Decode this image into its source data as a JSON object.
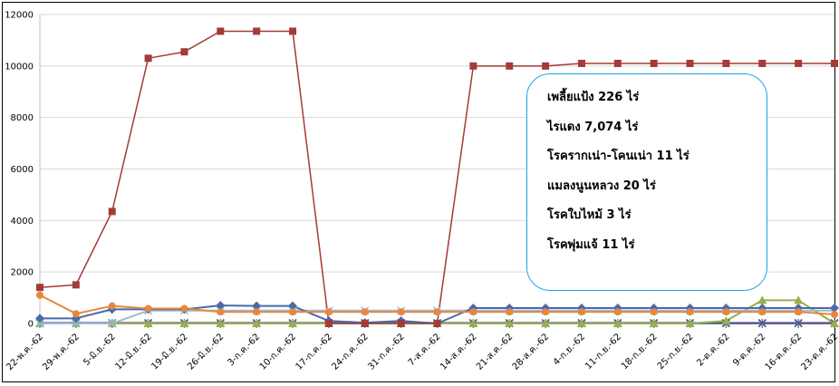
{
  "chart_data": {
    "type": "line",
    "title": "",
    "xlabel": "",
    "ylabel": "",
    "ylim": [
      0,
      12000
    ],
    "yticks": [
      0,
      2000,
      4000,
      6000,
      8000,
      10000,
      12000
    ],
    "grid": "horizontal",
    "legend": "none",
    "categories": [
      "22-พ.ค.-62",
      "29-พ.ค.-62",
      "5-มิ.ย.-62",
      "12-มิ.ย.-62",
      "19-มิ.ย.-62",
      "26-มิ.ย.-62",
      "3-ก.ค.-62",
      "10-ก.ค.-62",
      "17-ก.ค.-62",
      "24-ก.ค.-62",
      "31-ก.ค.-62",
      "7-ส.ค.-62",
      "14-ส.ค.-62",
      "21-ส.ค.-62",
      "28-ส.ค.-62",
      "4-ก.ย.-62",
      "11-ก.ย.-62",
      "18-ก.ย.-62",
      "25-ก.ย.-62",
      "2-ต.ค.-62",
      "9-ต.ค.-62",
      "16-ต.ค.-62",
      "23-ต.ค.-62"
    ],
    "series": [
      {
        "color": "#a33b36",
        "marker": "square",
        "values": [
          1400,
          1500,
          4350,
          10300,
          10550,
          11350,
          11350,
          11350,
          0,
          0,
          0,
          0,
          10000,
          10000,
          10000,
          10100,
          10100,
          10100,
          10100,
          10100,
          10100,
          10100,
          10100
        ]
      },
      {
        "color": "#e8873c",
        "marker": "circle",
        "values": [
          1100,
          380,
          680,
          580,
          580,
          450,
          450,
          450,
          450,
          450,
          450,
          450,
          450,
          450,
          450,
          450,
          450,
          450,
          450,
          450,
          450,
          450,
          350
        ]
      },
      {
        "color": "#4a6aa8",
        "marker": "diamond",
        "values": [
          200,
          200,
          550,
          550,
          550,
          700,
          680,
          680,
          100,
          30,
          100,
          0,
          600,
          600,
          600,
          600,
          600,
          600,
          600,
          600,
          600,
          600,
          600
        ]
      },
      {
        "color": "#9abad8",
        "marker": "x",
        "values": [
          0,
          0,
          0,
          500,
          500,
          500,
          500,
          500,
          500,
          500,
          500,
          500,
          500,
          500,
          500,
          500,
          500,
          500,
          500,
          500,
          500,
          500,
          500
        ]
      },
      {
        "color": "#95b04c",
        "marker": "triangle",
        "values": [
          0,
          0,
          0,
          0,
          0,
          0,
          0,
          0,
          0,
          0,
          0,
          0,
          0,
          0,
          0,
          0,
          0,
          0,
          0,
          100,
          900,
          900,
          0
        ]
      },
      {
        "color": "#6b4a8a",
        "marker": "x",
        "values": [
          20,
          20,
          20,
          20,
          20,
          20,
          20,
          20,
          20,
          20,
          20,
          20,
          20,
          20,
          20,
          20,
          20,
          20,
          20,
          20,
          20,
          20,
          20
        ]
      },
      {
        "color": "#37a0a8",
        "marker": "star",
        "values": [
          0,
          0,
          0,
          0,
          0,
          0,
          0,
          0,
          0,
          0,
          0,
          0,
          0,
          0,
          0,
          0,
          0,
          0,
          0,
          0,
          0,
          0,
          0
        ]
      }
    ],
    "annotations": [
      "เพลี้ยแป้ง 226 ไร่",
      "ไรแดง 7,074 ไร่",
      "โรครากเน่า-โคนเน่า 11 ไร่",
      "แมลงนูนหลวง 20 ไร่",
      "โรคใบไหม้ 3 ไร่",
      "โรคพุ่มแจ้ 11 ไร่"
    ]
  },
  "colors": {
    "callout_border": "#1fa3e6",
    "grid": "#d9d9d9",
    "axis": "#bfbfbf"
  }
}
